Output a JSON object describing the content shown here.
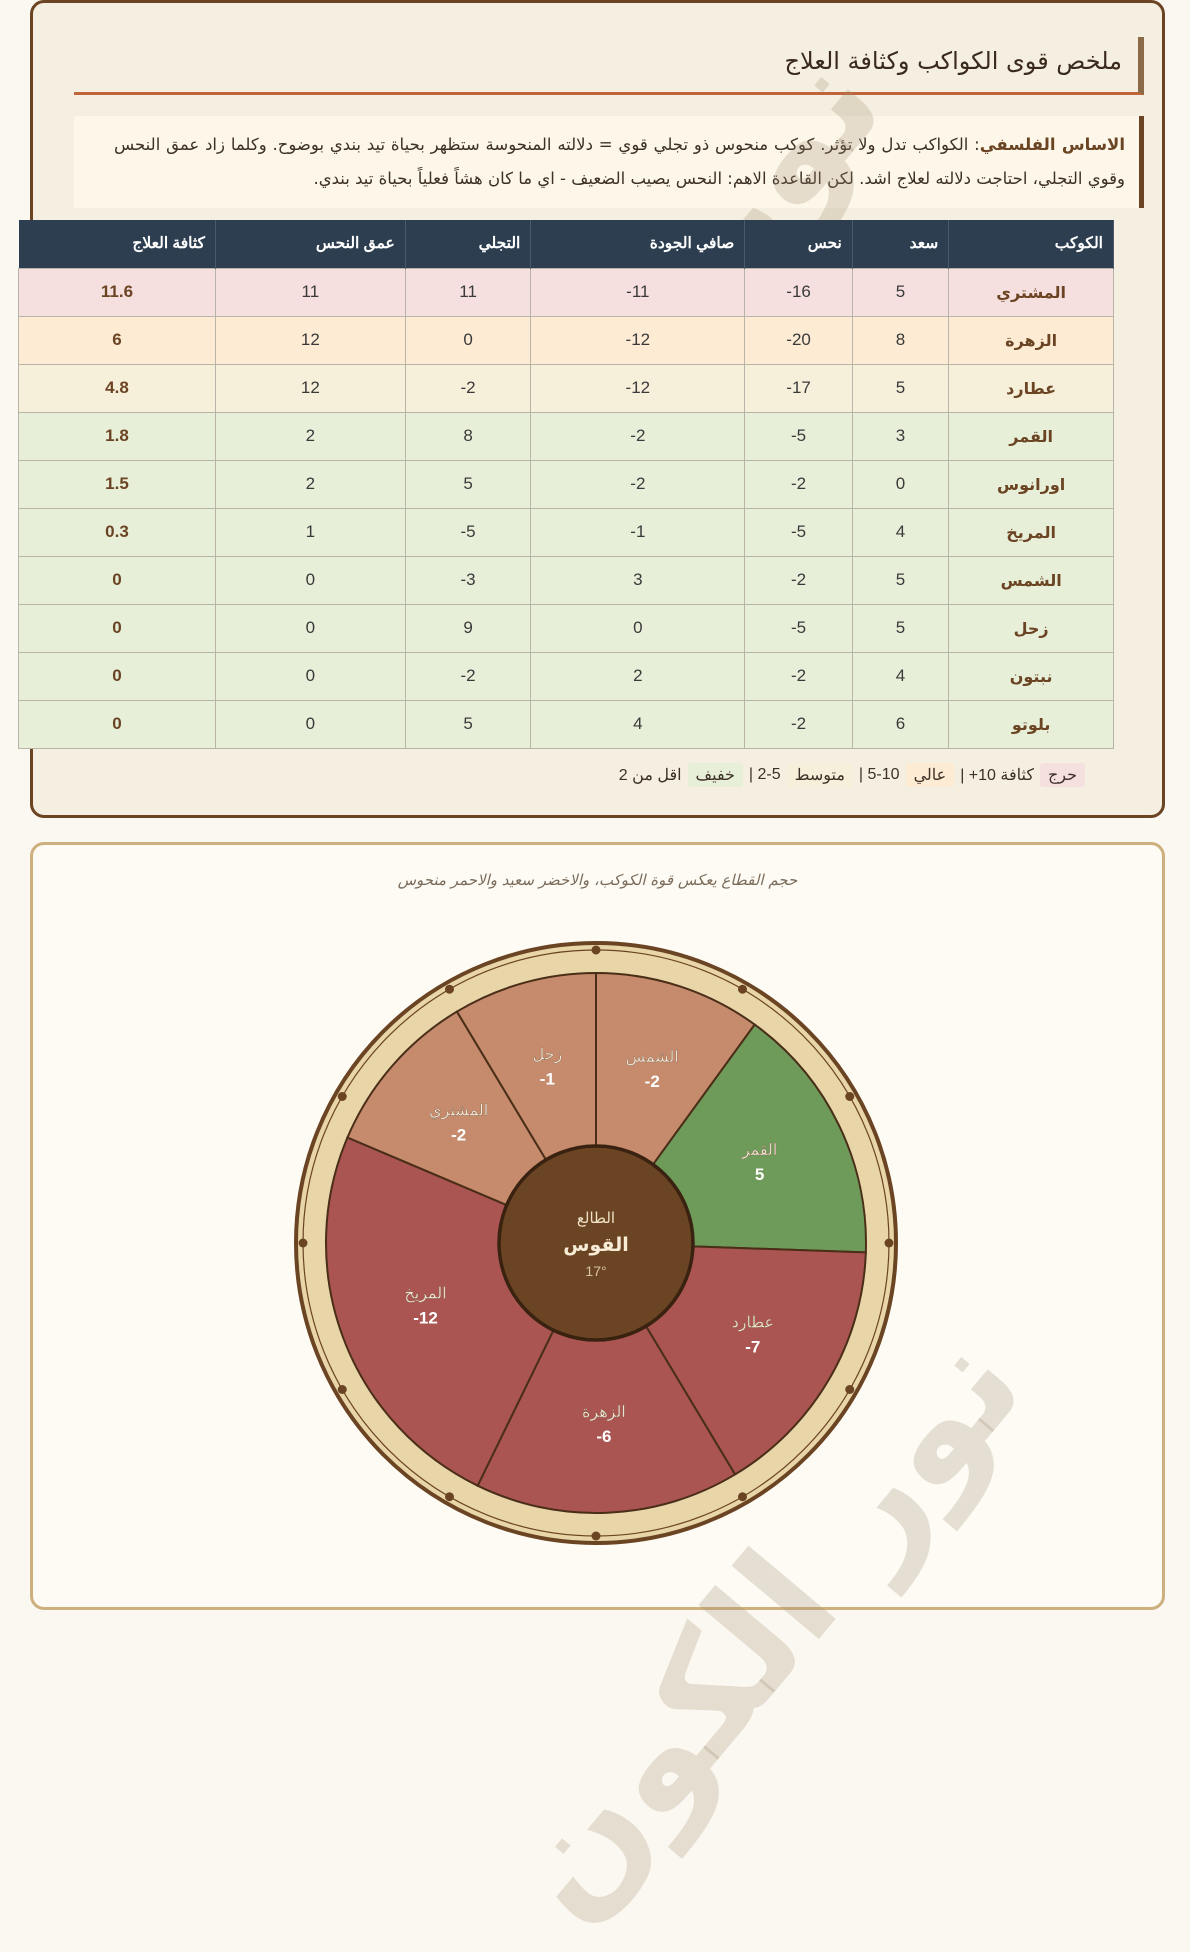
{
  "summary": {
    "title": "ملخص قوى الكواكب وكثافة العلاج",
    "note_lead": "الاساس الفلسفي",
    "note_text": ": الكواكب تدل ولا تؤثر. كوكب منحوس ذو تجلي قوي = دلالته المنحوسة ستظهر بحياة تيد بندي بوضوح. وكلما زاد عمق النحس وقوي التجلي، احتاجت دلالته لعلاج اشد. لكن القاعدة الاهم: النحس يصيب الضعيف - اي ما كان هشاً فعلياً بحياة تيد بندي.",
    "table": {
      "headers": [
        "الكوكب",
        "سعد",
        "نحس",
        "صافي الجودة",
        "التجلي",
        "عمق النحس",
        "كثافة العلاج"
      ],
      "rows": [
        {
          "planet": "المشتري",
          "saad": "5",
          "nahs": "16-",
          "net": "11-",
          "tajalli": "11",
          "depth": "11",
          "density": "11.6",
          "level": "critical"
        },
        {
          "planet": "الزهرة",
          "saad": "8",
          "nahs": "20-",
          "net": "12-",
          "tajalli": "0",
          "depth": "12",
          "density": "6",
          "level": "high"
        },
        {
          "planet": "عطارد",
          "saad": "5",
          "nahs": "17-",
          "net": "12-",
          "tajalli": "2-",
          "depth": "12",
          "density": "4.8",
          "level": "medium"
        },
        {
          "planet": "القمر",
          "saad": "3",
          "nahs": "5-",
          "net": "2-",
          "tajalli": "8",
          "depth": "2",
          "density": "1.8",
          "level": "light"
        },
        {
          "planet": "اورانوس",
          "saad": "0",
          "nahs": "2-",
          "net": "2-",
          "tajalli": "5",
          "depth": "2",
          "density": "1.5",
          "level": "light"
        },
        {
          "planet": "المريخ",
          "saad": "4",
          "nahs": "5-",
          "net": "1-",
          "tajalli": "5-",
          "depth": "1",
          "density": "0.3",
          "level": "light"
        },
        {
          "planet": "الشمس",
          "saad": "5",
          "nahs": "2-",
          "net": "3",
          "tajalli": "3-",
          "depth": "0",
          "density": "0",
          "level": "light"
        },
        {
          "planet": "زحل",
          "saad": "5",
          "nahs": "5-",
          "net": "0",
          "tajalli": "9",
          "depth": "0",
          "density": "0",
          "level": "light"
        },
        {
          "planet": "نبتون",
          "saad": "4",
          "nahs": "2-",
          "net": "2",
          "tajalli": "2-",
          "depth": "0",
          "density": "0",
          "level": "light"
        },
        {
          "planet": "بلوتو",
          "saad": "6",
          "nahs": "2-",
          "net": "4",
          "tajalli": "5",
          "depth": "0",
          "density": "0",
          "level": "light"
        }
      ]
    },
    "legend": {
      "critical_label": "حرج",
      "critical_range": "كثافة 10+ |",
      "high_label": "عالي",
      "high_range": "5-10 |",
      "medium_label": "متوسط",
      "medium_range": "2-5 |",
      "light_label": "خفيف",
      "light_range": "اقل من 2"
    },
    "colors": {
      "critical": "#f5dfdf",
      "high": "#fdebd3",
      "medium": "#f6efd9",
      "light": "#e8efd9",
      "header": "#2c3e50"
    }
  },
  "wheel": {
    "caption": "حجم القطاع يعكس قوة الكوكب، والاخضر سعيد والاحمر منحوس",
    "center": {
      "label": "الطالع",
      "sign": "القوس",
      "degree": "17°"
    },
    "sectors": [
      {
        "name": "الشمس",
        "value": "2-",
        "start": 0,
        "end": 36,
        "color": "#c68b6d"
      },
      {
        "name": "القمر",
        "value": "5",
        "start": 36,
        "end": 92,
        "color": "#6e9a5a"
      },
      {
        "name": "عطارد",
        "value": "7-",
        "start": 92,
        "end": 149,
        "color": "#aa5552"
      },
      {
        "name": "الزهرة",
        "value": "6-",
        "start": 149,
        "end": 206,
        "color": "#aa5552"
      },
      {
        "name": "المريخ",
        "value": "12-",
        "start": 206,
        "end": 293,
        "color": "#aa5552"
      },
      {
        "name": "المشتري",
        "value": "2-",
        "start": 293,
        "end": 329,
        "color": "#c68b6d"
      },
      {
        "name": "زحل",
        "value": "1-",
        "start": 329,
        "end": 360,
        "color": "#c68b6d"
      }
    ],
    "colors": {
      "ring": "#e8d5a8",
      "ring_border": "#6b4423",
      "center_fill": "#6b4423"
    }
  },
  "watermark": {
    "text": "نور الكون"
  }
}
